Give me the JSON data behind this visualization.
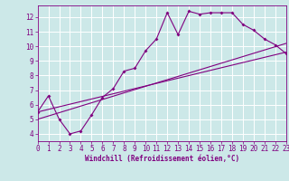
{
  "xlabel": "Windchill (Refroidissement éolien,°C)",
  "bg_color": "#cce8e8",
  "line_color": "#800080",
  "grid_color": "#ffffff",
  "xmin": 0,
  "xmax": 23,
  "ymin": 3.5,
  "ymax": 12.8,
  "yticks": [
    4,
    5,
    6,
    7,
    8,
    9,
    10,
    11,
    12
  ],
  "xticks": [
    0,
    1,
    2,
    3,
    4,
    5,
    6,
    7,
    8,
    9,
    10,
    11,
    12,
    13,
    14,
    15,
    16,
    17,
    18,
    19,
    20,
    21,
    22,
    23
  ],
  "line1_x": [
    0,
    1,
    2,
    3,
    4,
    5,
    6,
    7,
    8,
    9,
    10,
    11,
    12,
    13,
    14,
    15,
    16,
    17,
    18,
    19,
    20,
    21,
    22,
    23
  ],
  "line1_y": [
    5.5,
    6.6,
    5.0,
    4.0,
    4.2,
    5.3,
    6.5,
    7.1,
    8.3,
    8.5,
    9.7,
    10.5,
    12.3,
    10.8,
    12.4,
    12.2,
    12.3,
    12.3,
    12.3,
    11.5,
    11.1,
    10.5,
    10.1,
    9.5
  ],
  "line2_x": [
    0,
    23
  ],
  "line2_y": [
    5.5,
    9.6
  ],
  "line3_x": [
    0,
    23
  ],
  "line3_y": [
    5.0,
    10.2
  ],
  "xlabel_fontsize": 5.5,
  "tick_fontsize": 5.5
}
